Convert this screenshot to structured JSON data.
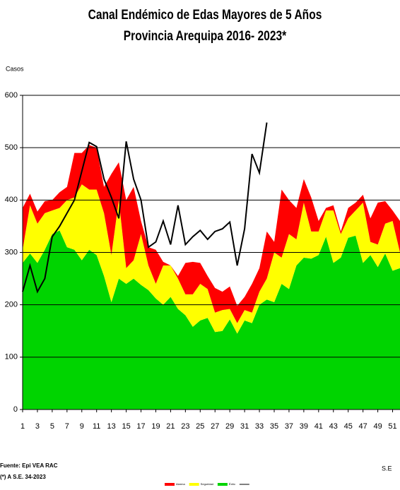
{
  "chart_data": {
    "type": "stacked_area_line",
    "title": "Canal Endémico de Edas Mayores de 5 Años",
    "subtitle": "Provincia Arequipa  2016- 2023*",
    "y_label": "Casos",
    "x_label": "S.E",
    "source": "Fuente: Epi VEA RAC",
    "note": "(*) A S.E. 34-2023",
    "x": [
      1,
      2,
      3,
      4,
      5,
      6,
      7,
      8,
      9,
      10,
      11,
      12,
      13,
      14,
      15,
      16,
      17,
      18,
      19,
      20,
      21,
      22,
      23,
      24,
      25,
      26,
      27,
      28,
      29,
      30,
      31,
      32,
      33,
      34,
      35,
      36,
      37,
      38,
      39,
      40,
      41,
      42,
      43,
      44,
      45,
      46,
      47,
      48,
      49,
      50,
      51,
      52
    ],
    "xlim": [
      1,
      52
    ],
    "xticks": [
      1,
      3,
      5,
      7,
      9,
      11,
      13,
      15,
      17,
      19,
      21,
      23,
      25,
      27,
      29,
      31,
      33,
      35,
      37,
      39,
      41,
      43,
      45,
      47,
      49,
      51
    ],
    "ylim": [
      0,
      600
    ],
    "yticks": [
      0,
      100,
      200,
      300,
      400,
      500,
      600
    ],
    "grid": true,
    "series": [
      {
        "name": "Éxito",
        "color": "#00d400",
        "kind": "area",
        "values": [
          280,
          298,
          280,
          305,
          335,
          342,
          310,
          305,
          285,
          305,
          295,
          255,
          205,
          250,
          240,
          250,
          238,
          228,
          212,
          200,
          215,
          192,
          180,
          158,
          170,
          175,
          148,
          150,
          172,
          145,
          170,
          165,
          200,
          210,
          205,
          240,
          230,
          275,
          290,
          288,
          295,
          330,
          280,
          290,
          328,
          332,
          280,
          295,
          272,
          298,
          265,
          270
        ]
      },
      {
        "name": "Seguridad",
        "color": "#ffff00",
        "kind": "area",
        "values": [
          25,
          92,
          75,
          70,
          45,
          43,
          90,
          100,
          145,
          115,
          125,
          120,
          90,
          150,
          30,
          35,
          97,
          47,
          28,
          75,
          60,
          58,
          40,
          62,
          70,
          55,
          37,
          40,
          20,
          20,
          20,
          20,
          25,
          40,
          95,
          50,
          105,
          50,
          105,
          52,
          45,
          50,
          100,
          45,
          37,
          48,
          115,
          25,
          43,
          57,
          95,
          30
        ]
      },
      {
        "name": "Alarma",
        "color": "#ff0000",
        "kind": "area",
        "values": [
          80,
          22,
          23,
          23,
          20,
          30,
          25,
          85,
          60,
          85,
          80,
          50,
          155,
          72,
          130,
          140,
          25,
          35,
          65,
          7,
          0,
          5,
          60,
          62,
          40,
          25,
          47,
          35,
          43,
          33,
          25,
          55,
          45,
          90,
          20,
          130,
          65,
          60,
          45,
          65,
          20,
          5,
          10,
          5,
          20,
          15,
          15,
          45,
          80,
          43,
          20,
          60
        ]
      },
      {
        "color": "#000000",
        "kind": "line",
        "values": [
          225,
          275,
          225,
          250,
          330,
          350,
          375,
          400,
          455,
          510,
          502,
          440,
          405,
          365,
          512,
          440,
          400,
          310,
          320,
          360,
          315,
          390,
          315,
          330,
          342,
          325,
          340,
          345,
          358,
          275,
          345,
          488,
          452,
          548,
          null,
          null,
          null,
          null,
          null,
          null,
          null,
          null,
          null,
          null,
          null,
          null,
          null,
          null,
          null,
          null,
          null,
          null
        ]
      }
    ]
  }
}
